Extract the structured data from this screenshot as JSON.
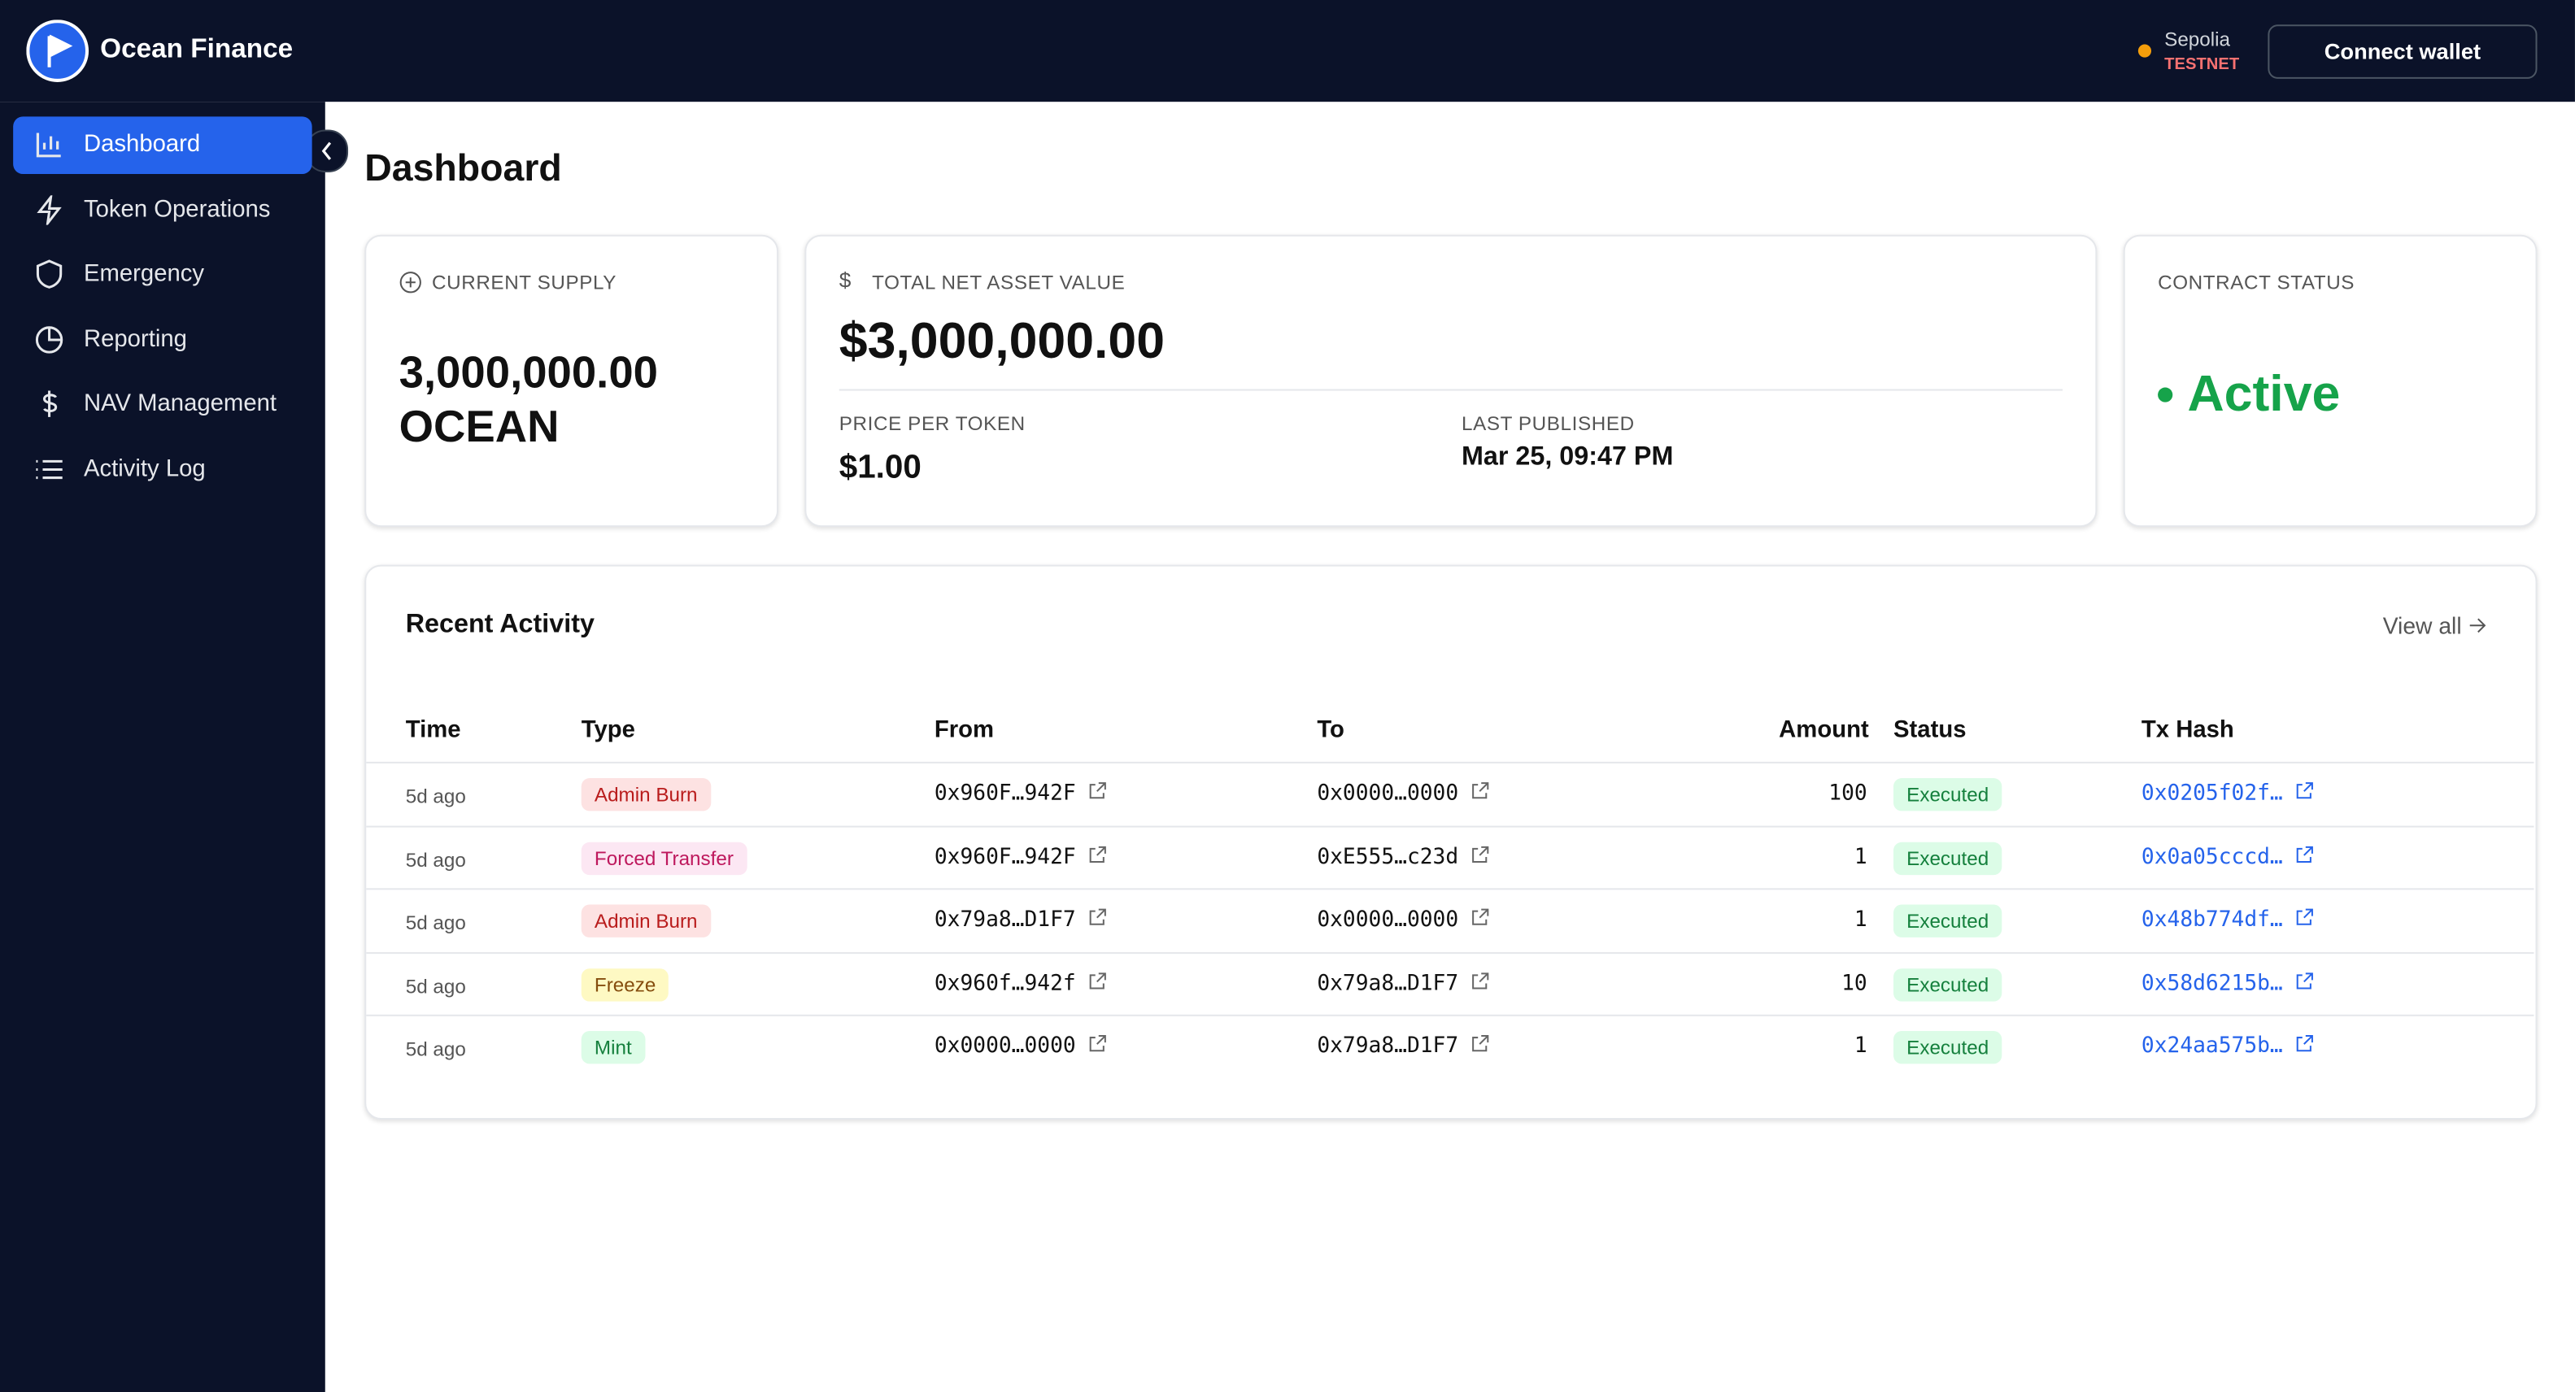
{
  "header": {
    "brand": "Ocean Finance",
    "network": "Sepolia",
    "network_tag": "TESTNET",
    "button": "Connect wallet"
  },
  "nav": [
    "Dashboard",
    "Token Operations",
    "Emergency",
    "Reporting",
    "NAV Management",
    "Activity Log"
  ],
  "page_title": "Dashboard",
  "cards": {
    "supply": {
      "label": "CURRENT SUPPLY",
      "value": "3,000,000.00",
      "unit": "OCEAN"
    },
    "nav": {
      "label": "TOTAL NET ASSET VALUE",
      "value": "$3,000,000.00",
      "price_label": "PRICE PER TOKEN",
      "price": "$1.00",
      "published_label": "LAST PUBLISHED",
      "published": "Mar 25, 09:47 PM"
    },
    "status": {
      "label": "CONTRACT STATUS",
      "value": "Active"
    }
  },
  "activity": {
    "title": "Recent Activity",
    "view_all": "View all",
    "columns": [
      "Time",
      "Type",
      "From",
      "To",
      "Amount",
      "Status",
      "Tx Hash"
    ],
    "rows": [
      [
        "5d ago",
        "Admin Burn",
        "0x960F…942F",
        "0x0000…0000",
        "100",
        "Executed",
        "0x0205f02f…"
      ],
      [
        "5d ago",
        "Forced Transfer",
        "0x960F…942F",
        "0xE555…c23d",
        "1",
        "Executed",
        "0x0a05cccd…"
      ],
      [
        "5d ago",
        "Admin Burn",
        "0x79a8…D1F7",
        "0x0000…0000",
        "1",
        "Executed",
        "0x48b774df…"
      ],
      [
        "5d ago",
        "Freeze",
        "0x960f…942f",
        "0x79a8…D1F7",
        "10",
        "Executed",
        "0x58d6215b…"
      ],
      [
        "5d ago",
        "Mint",
        "0x0000…0000",
        "0x79a8…D1F7",
        "1",
        "Executed",
        "0x24aa575b…"
      ]
    ]
  }
}
